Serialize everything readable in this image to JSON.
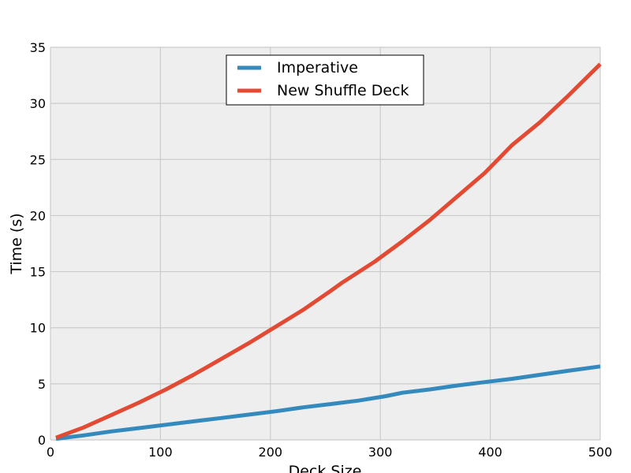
{
  "chart_data": {
    "type": "line",
    "xlabel": "Deck Size",
    "ylabel": "Time (s)",
    "xlim": [
      0,
      500
    ],
    "ylim": [
      0,
      35
    ],
    "xticks": [
      "0",
      "100",
      "200",
      "300",
      "400",
      "500"
    ],
    "yticks": [
      "0",
      "5",
      "10",
      "15",
      "20",
      "25",
      "30",
      "35"
    ],
    "grid": true,
    "legend_position": "top-center",
    "series": [
      {
        "name": "Imperative",
        "color": "#348ABD",
        "x": [
          5,
          30,
          55,
          80,
          105,
          130,
          155,
          180,
          205,
          230,
          255,
          280,
          305,
          320,
          345,
          370,
          395,
          420,
          445,
          470,
          500
        ],
        "y": [
          0.1,
          0.4,
          0.75,
          1.05,
          1.35,
          1.65,
          1.95,
          2.25,
          2.55,
          2.9,
          3.2,
          3.5,
          3.9,
          4.2,
          4.5,
          4.85,
          5.15,
          5.45,
          5.8,
          6.15,
          6.55
        ]
      },
      {
        "name": "New Shuffle Deck",
        "color": "#E24A33",
        "x": [
          5,
          30,
          55,
          80,
          105,
          130,
          155,
          180,
          205,
          230,
          255,
          265,
          295,
          320,
          345,
          370,
          395,
          420,
          445,
          470,
          500
        ],
        "y": [
          0.2,
          1.1,
          2.2,
          3.3,
          4.5,
          5.8,
          7.2,
          8.6,
          10.1,
          11.6,
          13.3,
          14.0,
          15.9,
          17.7,
          19.6,
          21.7,
          23.8,
          26.3,
          28.3,
          30.6,
          33.5
        ]
      }
    ]
  }
}
